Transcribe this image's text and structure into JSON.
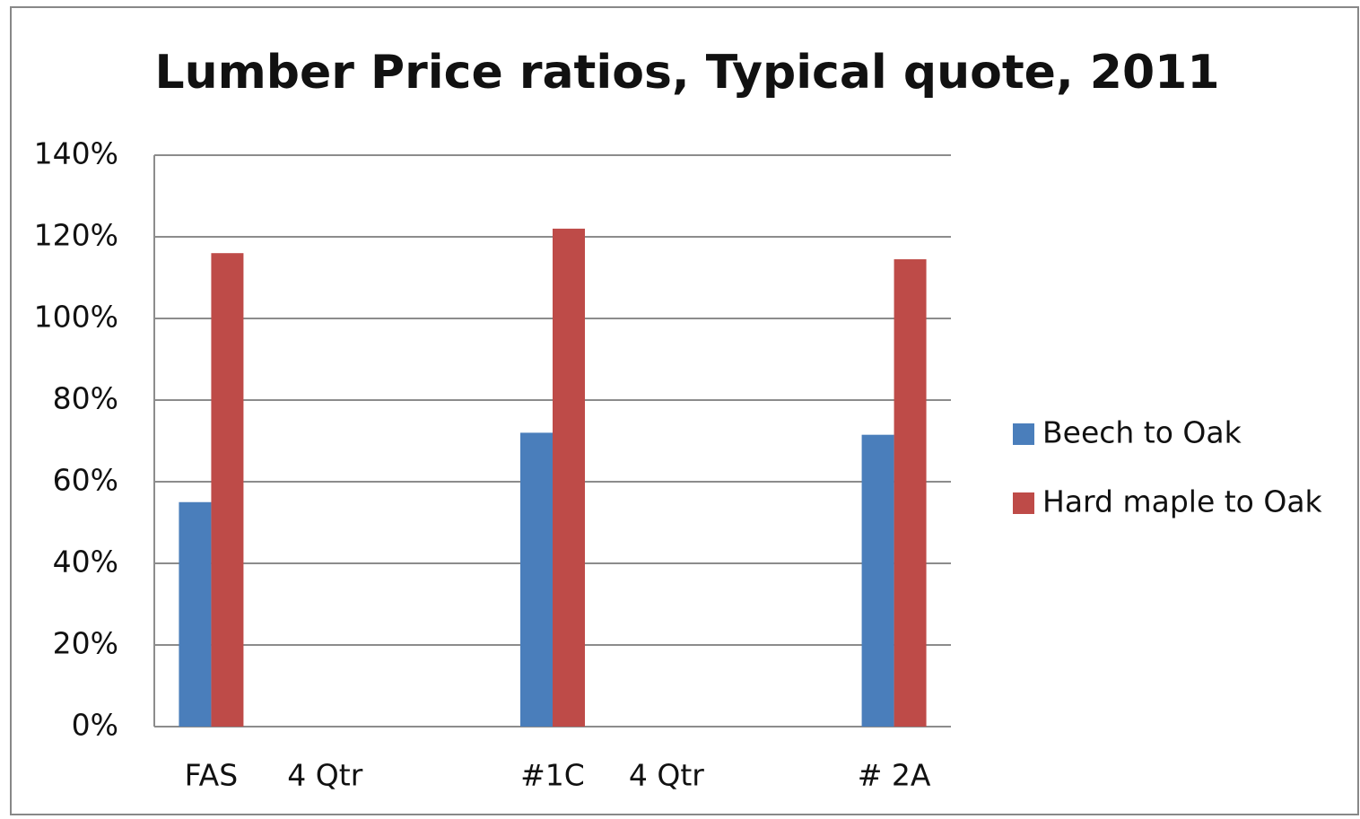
{
  "chart_data": {
    "type": "bar",
    "title": "Lumber Price ratios,  Typical quote, 2011",
    "categories": [
      "FAS",
      "4 Qtr",
      null,
      "#1C",
      "4 Qtr",
      null,
      "# 2A"
    ],
    "series": [
      {
        "name": "Beech to Oak",
        "color": "#4a7ebb",
        "values": [
          55,
          null,
          null,
          72,
          null,
          null,
          71.5
        ]
      },
      {
        "name": "Hard maple to Oak",
        "color": "#be4b48",
        "values": [
          116,
          null,
          null,
          122,
          null,
          null,
          114.5
        ]
      }
    ],
    "ylim": [
      0,
      140
    ],
    "yticks": [
      {
        "value": 0,
        "label": "0%"
      },
      {
        "value": 20,
        "label": "20%"
      },
      {
        "value": 40,
        "label": "40%"
      },
      {
        "value": 60,
        "label": "60%"
      },
      {
        "value": 80,
        "label": "80%"
      },
      {
        "value": 100,
        "label": "100%"
      },
      {
        "value": 120,
        "label": "120%"
      },
      {
        "value": 140,
        "label": "140%"
      }
    ],
    "grid": true,
    "legend": "right"
  }
}
